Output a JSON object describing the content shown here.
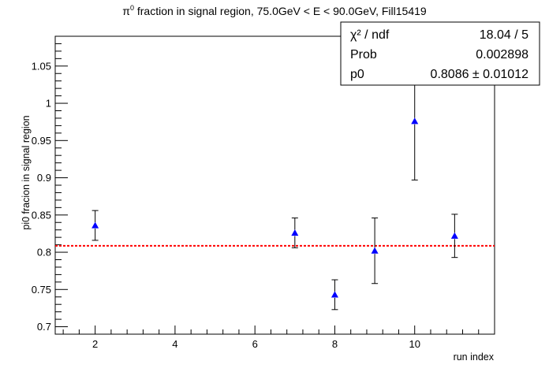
{
  "chart_data": {
    "type": "scatter",
    "title_main": "π",
    "title_sup": "0",
    "title_rest": " fraction in signal region, 75.0GeV < E < 90.0GeV, Fill15419",
    "xlabel": "run index",
    "ylabel": "pi0 fracion in signal region",
    "xlim": [
      1.0,
      12.0
    ],
    "ylim": [
      0.69,
      1.09
    ],
    "x_ticks": [
      2,
      4,
      6,
      8,
      10
    ],
    "y_ticks": [
      0.7,
      0.75,
      0.8,
      0.85,
      0.9,
      0.95,
      1.0,
      1.05
    ],
    "y_tick_labels": [
      "0.7",
      "0.75",
      "0.8",
      "0.85",
      "0.9",
      "0.95",
      "1",
      "1.05"
    ],
    "grid": false,
    "marker": "triangle-up",
    "marker_color": "#0000ff",
    "points": [
      {
        "x": 2,
        "y": 0.836,
        "err": 0.02
      },
      {
        "x": 7,
        "y": 0.826,
        "err": 0.02
      },
      {
        "x": 8,
        "y": 0.743,
        "err": 0.02
      },
      {
        "x": 9,
        "y": 0.802,
        "err": 0.044
      },
      {
        "x": 10,
        "y": 0.976,
        "err": 0.079
      },
      {
        "x": 11,
        "y": 0.822,
        "err": 0.029
      }
    ],
    "fit": {
      "type": "constant",
      "value": 0.8086,
      "color": "#ff0000",
      "style": "dashed"
    },
    "stats_box": {
      "rows": [
        {
          "label": "χ² / ndf",
          "value": "18.04 / 5"
        },
        {
          "label": "Prob",
          "value": "0.002898"
        },
        {
          "label": "p0",
          "value": "0.8086 ± 0.01012"
        }
      ]
    }
  }
}
